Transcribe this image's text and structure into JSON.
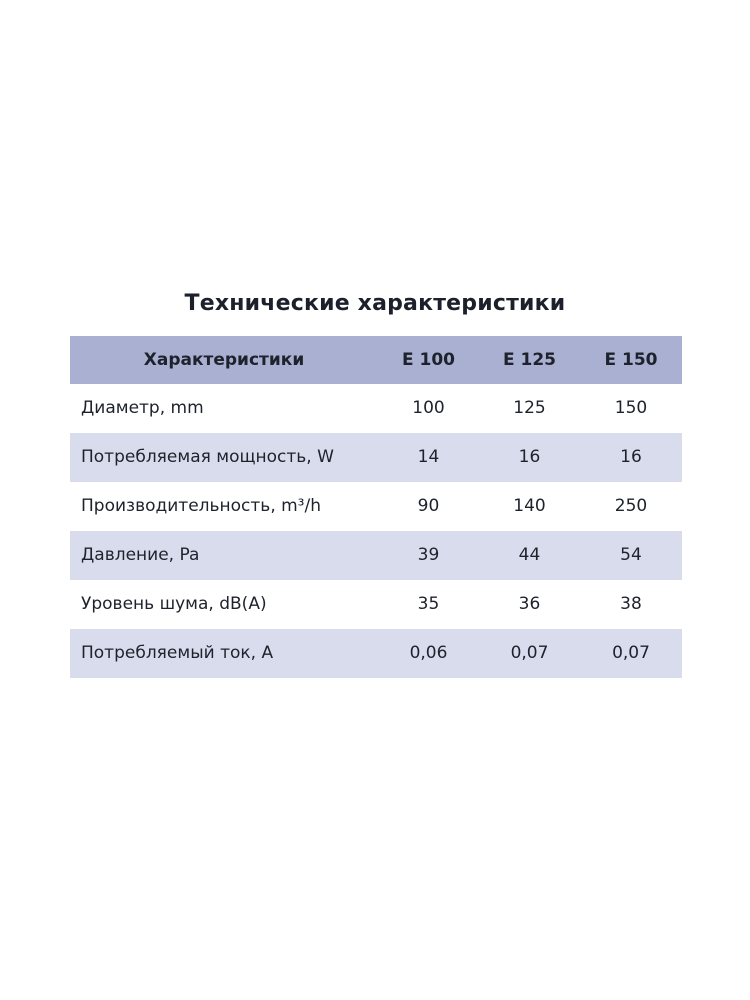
{
  "title": "Технические характеристики",
  "table": {
    "header": {
      "label": "Характеристики",
      "columns": [
        "E 100",
        "E 125",
        "E 150"
      ]
    },
    "rows": [
      {
        "label": "Диаметр, mm",
        "values": [
          "100",
          "125",
          "150"
        ]
      },
      {
        "label": "Потребляемая мощность, W",
        "values": [
          "14",
          "16",
          "16"
        ]
      },
      {
        "label": "Производительность, m³/h",
        "values": [
          "90",
          "140",
          "250"
        ]
      },
      {
        "label": "Давление, Pa",
        "values": [
          "39",
          "44",
          "54"
        ]
      },
      {
        "label": "Уровень шума, dB(A)",
        "values": [
          "35",
          "36",
          "38"
        ]
      },
      {
        "label": "Потребляемый ток, A",
        "values": [
          "0,06",
          "0,07",
          "0,07"
        ]
      }
    ],
    "colors": {
      "header_bg": "#a9b0d2",
      "row_alt_bg": "#d9dcec",
      "row_bg": "#ffffff",
      "text": "#1e222c"
    }
  }
}
